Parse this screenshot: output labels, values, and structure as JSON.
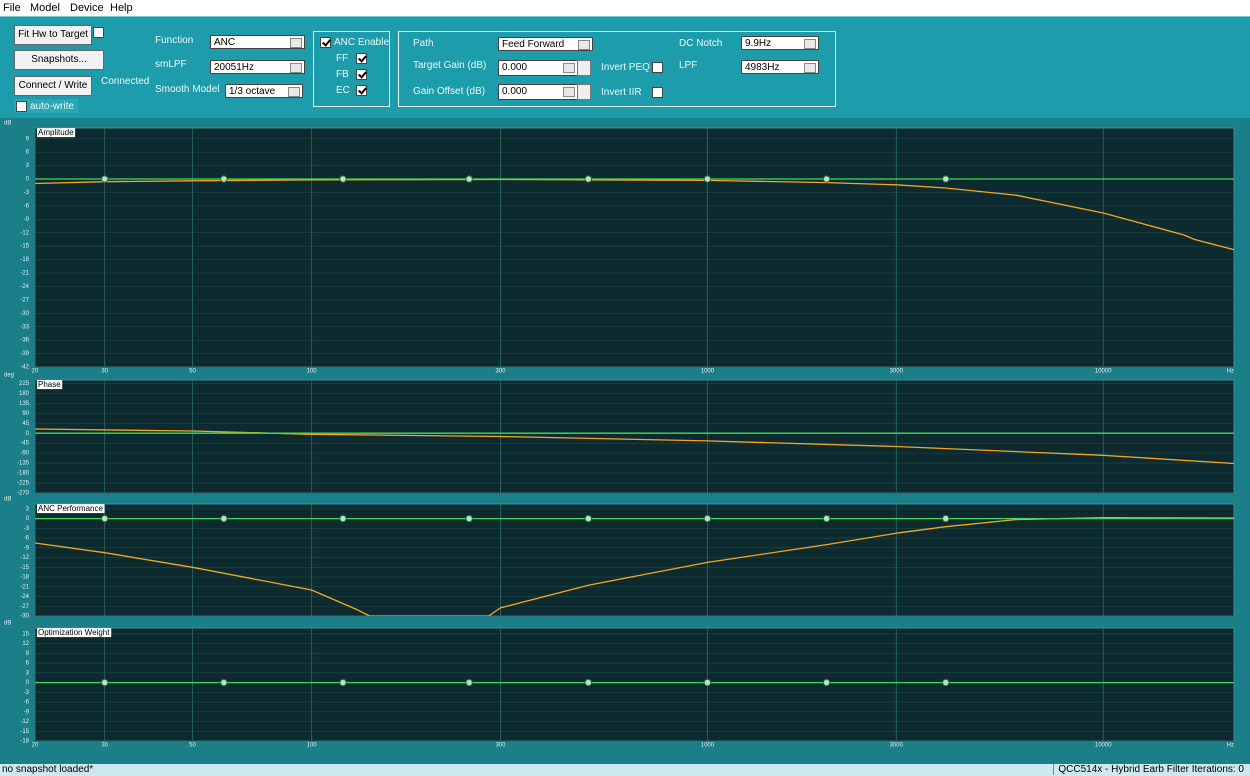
{
  "menu": [
    "File",
    "Model",
    "Device",
    "Help"
  ],
  "toolbar": {
    "fit_button": "Fit Hw to Target",
    "fit_checked": false,
    "snapshots_button": "Snapshots...",
    "connect_button": "Connect / Write",
    "connection_status": "Connected",
    "auto_write": {
      "label": "auto-write",
      "checked": false
    },
    "function": {
      "label": "Function",
      "value": "ANC"
    },
    "smlpf": {
      "label": "smLPF",
      "value": "20051Hz"
    },
    "smooth_model": {
      "label": "Smooth Model",
      "value": "1/3 octave"
    },
    "anc_enable": {
      "label": "ANC Enable",
      "checked": true
    },
    "ff": {
      "label": "FF",
      "checked": true
    },
    "fb": {
      "label": "FB",
      "checked": true
    },
    "ec": {
      "label": "EC",
      "checked": true
    },
    "path": {
      "label": "Path",
      "value": "Feed Forward"
    },
    "target_gain": {
      "label": "Target Gain (dB)",
      "value": "0.000"
    },
    "gain_offset": {
      "label": "Gain Offset (dB)",
      "value": "0.000"
    },
    "invert_peq": {
      "label": "Invert PEQ",
      "checked": false
    },
    "invert_iir": {
      "label": "Invert IIR",
      "checked": false
    },
    "dc_notch": {
      "label": "DC Notch",
      "value": "9.9Hz"
    },
    "lpf": {
      "label": "LPF",
      "value": "4983Hz"
    }
  },
  "chart_data": [
    {
      "type": "line",
      "title": "Amplitude",
      "y_unit": "dB",
      "x_unit": "Hz",
      "x_log": true,
      "xtick_labels": true,
      "grid": true,
      "xlim": [
        20,
        21400
      ],
      "xticks": [
        20,
        30,
        50,
        100,
        300,
        1000,
        3000,
        10000
      ],
      "ylim": [
        -42,
        11.4
      ],
      "yticks": [
        9,
        6,
        3,
        0,
        -3,
        -6,
        -9,
        -12,
        -15,
        -18,
        -21,
        -24,
        -27,
        -30,
        -33,
        -36,
        -39,
        -42
      ],
      "series": [
        {
          "color": "#f5a623",
          "x": [
            20,
            30,
            50,
            100,
            300,
            1000,
            2000,
            3000,
            4000,
            6000,
            10000,
            16000,
            17000,
            21400
          ],
          "values": [
            -1.0,
            -0.6,
            -0.4,
            -0.2,
            -0.1,
            -0.3,
            -0.8,
            -1.3,
            -2.0,
            -3.6,
            -7.6,
            -12.5,
            -13.5,
            -15.8
          ]
        },
        {
          "color": "#3ddc5a",
          "x": [
            20,
            21400
          ],
          "values": [
            0,
            0
          ]
        },
        {
          "color": "#b9e3c6",
          "marker": "circle",
          "x": [
            30,
            60,
            120,
            250,
            500,
            1000,
            2000,
            4000
          ],
          "values": [
            0,
            0,
            0,
            0,
            0,
            0,
            0,
            0
          ]
        }
      ]
    },
    {
      "type": "line",
      "title": "Phase",
      "y_unit": "deg",
      "x_log": true,
      "xtick_labels": false,
      "grid": true,
      "xlim": [
        20,
        21400
      ],
      "xticks": [
        20,
        30,
        50,
        100,
        300,
        1000,
        3000,
        10000
      ],
      "ylim": [
        -270,
        240
      ],
      "yticks": [
        225,
        180,
        135,
        90,
        45,
        0,
        -45,
        -90,
        -135,
        -180,
        -225,
        -270
      ],
      "series": [
        {
          "color": "#f5a623",
          "x": [
            20,
            50,
            100,
            300,
            1000,
            3000,
            10000,
            21400
          ],
          "values": [
            19,
            10,
            -5,
            -15,
            -35,
            -60,
            -100,
            -137
          ]
        },
        {
          "color": "#3ddc5a",
          "x": [
            20,
            21400
          ],
          "values": [
            0,
            0
          ]
        }
      ]
    },
    {
      "type": "line",
      "title": "ANC Performance",
      "y_unit": "dB",
      "x_log": true,
      "xtick_labels": false,
      "grid": true,
      "xlim": [
        20,
        21400
      ],
      "xticks": [
        20,
        30,
        50,
        100,
        300,
        1000,
        3000,
        10000
      ],
      "ylim": [
        -30,
        4.5
      ],
      "yticks": [
        3,
        0,
        -3,
        -6,
        -9,
        -12,
        -15,
        -18,
        -21,
        -24,
        -27,
        -30
      ],
      "series": [
        {
          "color": "#f5a623",
          "x": [
            20,
            30,
            50,
            100,
            130,
            140,
            280,
            300,
            500,
            1000,
            2000,
            3000,
            4000,
            6000,
            10000,
            21400
          ],
          "values": [
            -7.5,
            -10.5,
            -15,
            -22,
            -28,
            -30,
            -30,
            -27.5,
            -20.5,
            -13.5,
            -8,
            -4.5,
            -2.5,
            -0.3,
            0.3,
            0.2
          ]
        },
        {
          "color": "#3ddc5a",
          "x": [
            20,
            21400
          ],
          "values": [
            0,
            0
          ]
        },
        {
          "color": "#b9e3c6",
          "marker": "circle",
          "x": [
            30,
            60,
            120,
            250,
            500,
            1000,
            2000,
            4000
          ],
          "values": [
            0,
            0,
            0,
            0,
            0,
            0,
            0,
            0
          ]
        }
      ]
    },
    {
      "type": "line",
      "title": "Optimization Weight",
      "y_unit": "dB",
      "x_unit": "Hz",
      "x_log": true,
      "xtick_labels": true,
      "grid": true,
      "xlim": [
        20,
        21400
      ],
      "xticks": [
        20,
        30,
        50,
        100,
        300,
        1000,
        3000,
        10000
      ],
      "ylim": [
        -18,
        16.8
      ],
      "yticks": [
        15,
        12,
        9,
        6,
        3,
        0,
        -3,
        -6,
        -9,
        -12,
        -15,
        -18
      ],
      "series": [
        {
          "color": "#3ddc5a",
          "x": [
            20,
            21400
          ],
          "values": [
            0,
            0
          ]
        },
        {
          "color": "#b9e3c6",
          "marker": "circle",
          "x": [
            30,
            60,
            120,
            250,
            500,
            1000,
            2000,
            4000
          ],
          "values": [
            0,
            0,
            0,
            0,
            0,
            0,
            0,
            0
          ]
        }
      ]
    }
  ],
  "status": {
    "left": "no snapshot loaded*",
    "right": "QCC514x - Hybrid Earb Filter Iterations: 0"
  }
}
